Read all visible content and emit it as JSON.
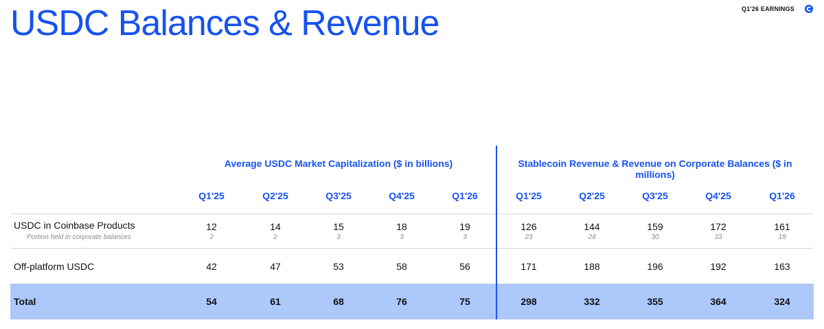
{
  "header": {
    "title": "USDC Balances & Revenue",
    "earnings_label": "Q1'26 EARNINGS",
    "logo_icon": "coinbase-logo-icon"
  },
  "table": {
    "left_header": "Average USDC Market Capitalization ($ in billions)",
    "right_header": "Stablecoin Revenue & Revenue on Corporate Balances ($ in millions)",
    "quarters": [
      "Q1'25",
      "Q2'25",
      "Q3'25",
      "Q4'25",
      "Q1'26",
      "Q1'25",
      "Q2'25",
      "Q3'25",
      "Q4'25",
      "Q1'26"
    ],
    "rows": [
      {
        "label": "USDC in Coinbase Products",
        "sublabel": "Portion held in corporate balances",
        "values": [
          "12",
          "14",
          "15",
          "18",
          "19",
          "126",
          "144",
          "159",
          "172",
          "161"
        ],
        "subvalues": [
          "2",
          "2",
          "3",
          "3",
          "3",
          "23",
          "24",
          "30",
          "33",
          "18"
        ]
      },
      {
        "label": "Off-platform USDC",
        "values": [
          "42",
          "47",
          "53",
          "58",
          "56",
          "171",
          "188",
          "196",
          "192",
          "163"
        ]
      },
      {
        "label": "Total",
        "values": [
          "54",
          "61",
          "68",
          "76",
          "75",
          "298",
          "332",
          "355",
          "364",
          "324"
        ]
      }
    ],
    "colors": {
      "accent": "#1652f0",
      "total_band": "#adc8fb"
    }
  }
}
